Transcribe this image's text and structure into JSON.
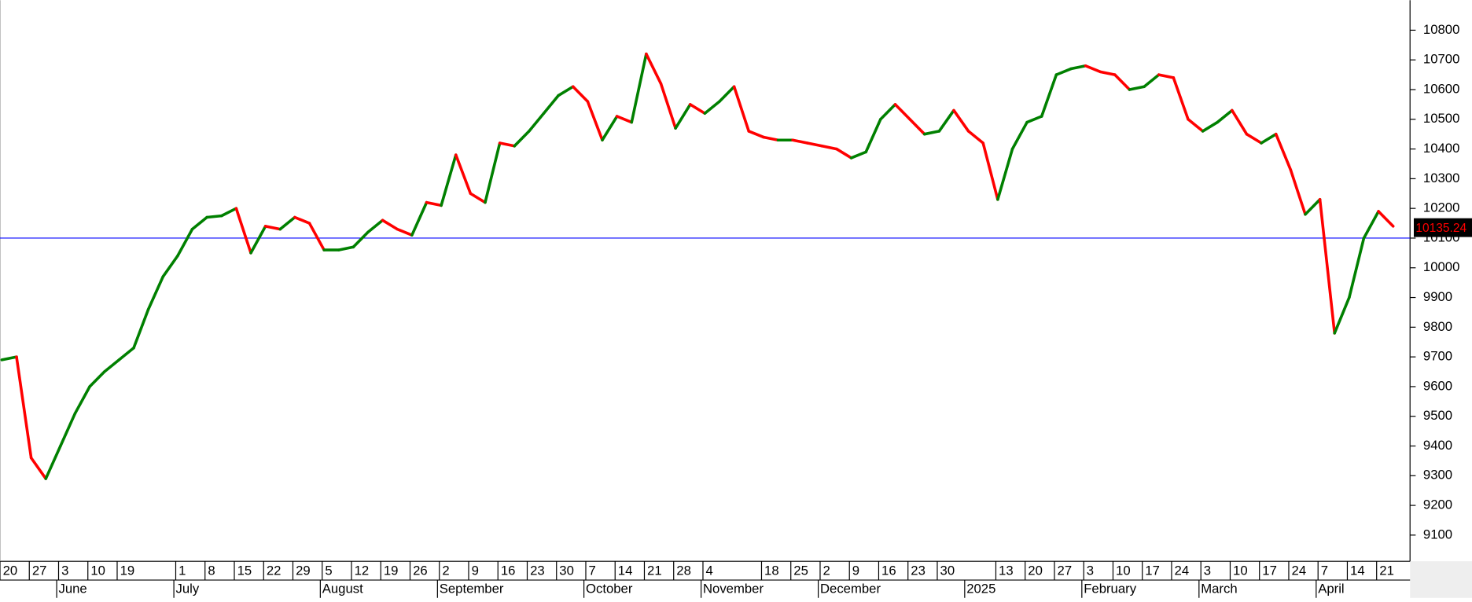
{
  "chart_data": {
    "type": "line",
    "categories": [
      "20",
      null,
      "27",
      null,
      "3",
      null,
      "10",
      null,
      "19",
      null,
      null,
      null,
      "1",
      null,
      "8",
      null,
      "15",
      null,
      "22",
      null,
      "29",
      null,
      "5",
      null,
      "12",
      null,
      "19",
      null,
      "26",
      null,
      "2",
      null,
      "9",
      null,
      "16",
      null,
      "23",
      null,
      "30",
      null,
      "7",
      null,
      "14",
      null,
      "21",
      null,
      "28",
      null,
      "4",
      null,
      null,
      null,
      "18",
      null,
      "25",
      null,
      "2",
      null,
      "9",
      null,
      "16",
      null,
      "23",
      null,
      "30",
      null,
      null,
      null,
      "13",
      null,
      "20",
      null,
      "27",
      null,
      "3",
      null,
      "10",
      null,
      "17",
      null,
      "24",
      null,
      "3",
      null,
      "10",
      null,
      "17",
      null,
      "24",
      null,
      "7",
      null,
      "14",
      null,
      "21",
      null
    ],
    "month_labels": [
      null,
      null,
      null,
      null,
      "June",
      null,
      null,
      null,
      null,
      null,
      null,
      null,
      "July",
      null,
      null,
      null,
      null,
      null,
      null,
      null,
      null,
      null,
      "August",
      null,
      null,
      null,
      null,
      null,
      null,
      null,
      "September",
      null,
      null,
      null,
      null,
      null,
      null,
      null,
      null,
      null,
      "October",
      null,
      null,
      null,
      null,
      null,
      null,
      null,
      "November",
      null,
      null,
      null,
      null,
      null,
      null,
      null,
      "December",
      null,
      null,
      null,
      null,
      null,
      null,
      null,
      null,
      null,
      "2025",
      null,
      null,
      null,
      null,
      null,
      null,
      null,
      "February",
      null,
      null,
      null,
      null,
      null,
      null,
      null,
      "March",
      null,
      null,
      null,
      null,
      null,
      null,
      null,
      "April",
      null,
      null,
      null,
      null,
      null
    ],
    "values": [
      9690,
      9700,
      9360,
      9290,
      9400,
      9510,
      9600,
      9650,
      9690,
      9730,
      9860,
      9970,
      10040,
      10130,
      10170,
      10175,
      10200,
      10050,
      10140,
      10130,
      10170,
      10150,
      10060,
      10060,
      10070,
      10120,
      10160,
      10130,
      10110,
      10220,
      10210,
      10380,
      10250,
      10220,
      10420,
      10410,
      10460,
      10520,
      10580,
      10610,
      10560,
      10430,
      10510,
      10490,
      10720,
      10620,
      10470,
      10550,
      10520,
      10560,
      10610,
      10460,
      10440,
      10430,
      10430,
      10420,
      10410,
      10400,
      10370,
      10390,
      10500,
      10550,
      10500,
      10450,
      10460,
      10530,
      10460,
      10420,
      10230,
      10400,
      10490,
      10510,
      10650,
      10670,
      10680,
      10660,
      10650,
      10600,
      10610,
      10650,
      10640,
      10500,
      10460,
      10490,
      10530,
      10450,
      10420,
      10450,
      10330,
      10180,
      10230,
      9780,
      9900,
      10100,
      10190,
      10140
    ],
    "up_color": "#008000",
    "down_color": "#ff0000",
    "hline": 10100,
    "hline_color": "#0000ff",
    "last_value": 10135.24,
    "ylim": [
      9015,
      10901
    ],
    "yticks": [
      9100,
      9200,
      9300,
      9400,
      9500,
      9600,
      9700,
      9800,
      9900,
      10000,
      10100,
      10200,
      10300,
      10400,
      10500,
      10600,
      10700,
      10800
    ]
  }
}
